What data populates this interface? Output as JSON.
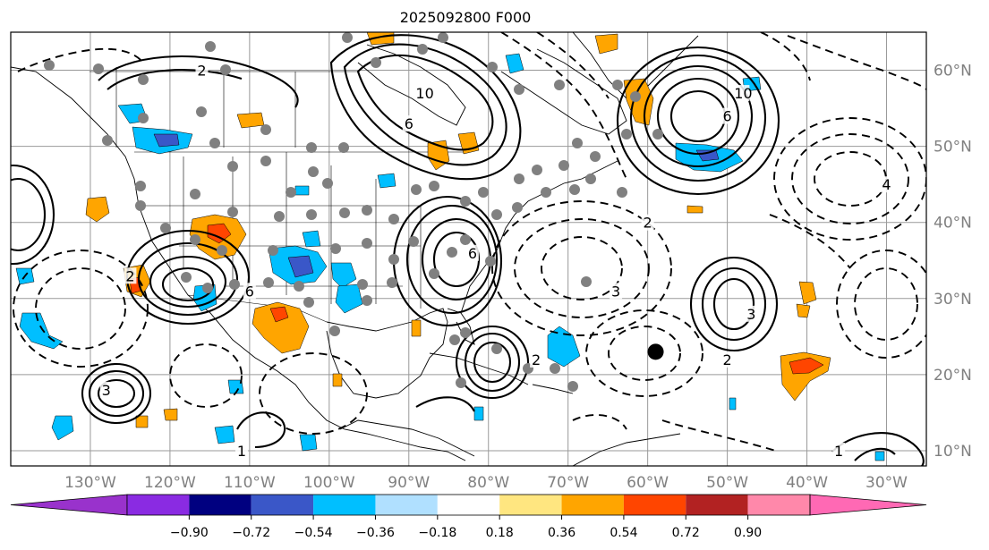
{
  "title": "2025092800 F000",
  "map": {
    "lon_range": [
      -140,
      -25
    ],
    "lat_range": [
      8,
      65
    ],
    "lon_ticks": [
      {
        "lon": -130,
        "label": "130°W"
      },
      {
        "lon": -120,
        "label": "120°W"
      },
      {
        "lon": -110,
        "label": "110°W"
      },
      {
        "lon": -100,
        "label": "100°W"
      },
      {
        "lon": -90,
        "label": "90°W"
      },
      {
        "lon": -80,
        "label": "80°W"
      },
      {
        "lon": -70,
        "label": "70°W"
      },
      {
        "lon": -60,
        "label": "60°W"
      },
      {
        "lon": -50,
        "label": "50°W"
      },
      {
        "lon": -40,
        "label": "40°W"
      },
      {
        "lon": -30,
        "label": "30°W"
      }
    ],
    "lat_ticks": [
      {
        "lat": 60,
        "label": "60°N"
      },
      {
        "lat": 50,
        "label": "50°N"
      },
      {
        "lat": 40,
        "label": "40°N"
      },
      {
        "lat": 30,
        "label": "30°N"
      },
      {
        "lat": 20,
        "label": "20°N"
      },
      {
        "lat": 10,
        "label": "10°N"
      }
    ],
    "grid": true,
    "contour_centers": [
      {
        "lon": -110,
        "lat": 31,
        "label": "6",
        "sign": "pos"
      },
      {
        "lon": -82,
        "lat": 36,
        "label": "6",
        "sign": "pos"
      },
      {
        "lon": -74,
        "lat": 22,
        "label": "2",
        "sign": "pos"
      },
      {
        "lon": -48,
        "lat": 57,
        "label": "10",
        "sign": "pos"
      },
      {
        "lon": -50,
        "lat": 54,
        "label": "6",
        "sign": "pos"
      },
      {
        "lon": -47,
        "lat": 28,
        "label": "3",
        "sign": "pos"
      },
      {
        "lon": -128,
        "lat": 18,
        "label": "3",
        "sign": "pos"
      },
      {
        "lon": -111,
        "lat": 10,
        "label": "1",
        "sign": "pos"
      },
      {
        "lon": -36,
        "lat": 10,
        "label": "1",
        "sign": "pos"
      },
      {
        "lon": -88,
        "lat": 57,
        "label": "10",
        "sign": "pos"
      },
      {
        "lon": -90,
        "lat": 53,
        "label": "6",
        "sign": "pos"
      },
      {
        "lon": -60,
        "lat": 40,
        "label": "2",
        "sign": "neg"
      },
      {
        "lon": -64,
        "lat": 31,
        "label": "3",
        "sign": "neg"
      },
      {
        "lon": -30,
        "lat": 45,
        "label": "4",
        "sign": "neg"
      },
      {
        "lon": -50,
        "lat": 22,
        "label": "2",
        "sign": "neg"
      },
      {
        "lon": -125,
        "lat": 33,
        "label": "2",
        "sign": "neg"
      },
      {
        "lon": -116,
        "lat": 60,
        "label": "2",
        "sign": "neg"
      }
    ],
    "marked_points": [
      {
        "lon": -59,
        "lat": 23,
        "kind": "black"
      }
    ]
  },
  "colorbar": {
    "colors": [
      "#9932cc",
      "#8a2be2",
      "#000080",
      "#3a57c8",
      "#00bfff",
      "#b0e0ff",
      "#ffffff",
      "#ffe680",
      "#ffa500",
      "#ff4500",
      "#b22222",
      "#ff88aa",
      "#ff69b4"
    ],
    "labels": [
      "−0.90",
      "−0.72",
      "−0.54",
      "−0.36",
      "−0.18",
      "0.18",
      "0.36",
      "0.54",
      "0.72",
      "0.90"
    ]
  }
}
